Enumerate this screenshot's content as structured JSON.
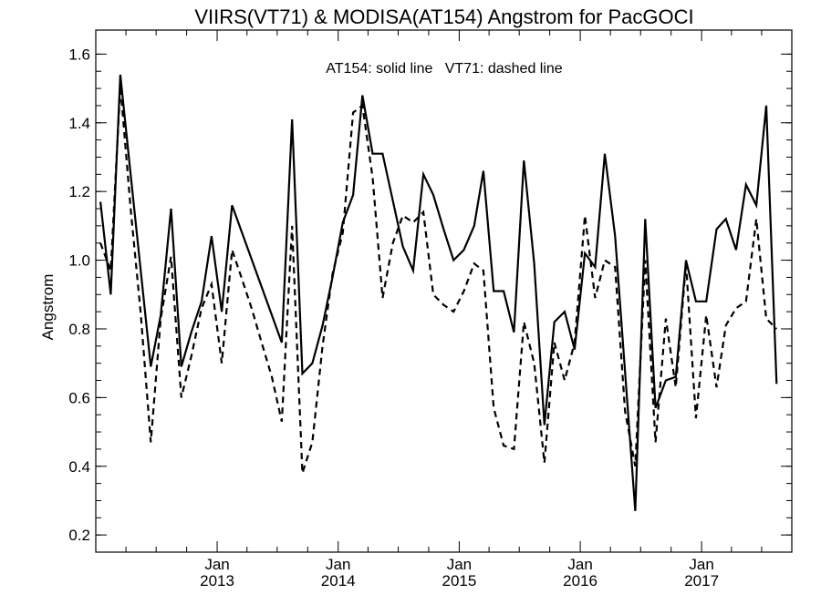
{
  "chart_data": {
    "type": "line",
    "title": "VIIRS(VT71) & MODISA(AT154)  Angstrom for PacGOCI",
    "annotation": "AT154: solid line   VT71: dashed line",
    "ylabel": "Angstrom",
    "xlabel": "",
    "ylim": [
      0.15,
      1.67
    ],
    "xlim": [
      "2012-01-01",
      "2017-09-30"
    ],
    "yticks": [
      "0.2",
      "0.4",
      "0.6",
      "0.8",
      "1.0",
      "1.2",
      "1.4",
      "1.6"
    ],
    "xticks": [
      {
        "month": "Jan",
        "year": "2013",
        "date": "2013-01-01"
      },
      {
        "month": "Jan",
        "year": "2014",
        "date": "2014-01-01"
      },
      {
        "month": "Jan",
        "year": "2015",
        "date": "2015-01-01"
      },
      {
        "month": "Jan",
        "year": "2016",
        "date": "2016-01-01"
      },
      {
        "month": "Jan",
        "year": "2017",
        "date": "2017-01-01"
      }
    ],
    "series": [
      {
        "name": "AT154",
        "style": "solid",
        "points": [
          [
            "2012-01-15",
            1.17
          ],
          [
            "2012-02-15",
            0.9
          ],
          [
            "2012-03-15",
            1.54
          ],
          [
            "2012-04-15",
            1.25
          ],
          [
            "2012-06-15",
            0.69
          ],
          [
            "2012-07-15",
            0.84
          ],
          [
            "2012-08-15",
            1.15
          ],
          [
            "2012-09-15",
            0.69
          ],
          [
            "2012-10-15",
            0.79
          ],
          [
            "2012-11-15",
            0.88
          ],
          [
            "2012-12-15",
            1.07
          ],
          [
            "2013-01-15",
            0.85
          ],
          [
            "2013-02-15",
            1.16
          ],
          [
            "2013-07-15",
            0.76
          ],
          [
            "2013-08-15",
            1.41
          ],
          [
            "2013-09-15",
            0.67
          ],
          [
            "2013-10-15",
            0.7
          ],
          [
            "2013-11-15",
            0.81
          ],
          [
            "2013-12-15",
            0.95
          ],
          [
            "2014-01-15",
            1.11
          ],
          [
            "2014-02-15",
            1.19
          ],
          [
            "2014-03-15",
            1.48
          ],
          [
            "2014-04-15",
            1.31
          ],
          [
            "2014-05-15",
            1.31
          ],
          [
            "2014-07-15",
            1.04
          ],
          [
            "2014-08-15",
            0.97
          ],
          [
            "2014-09-15",
            1.25
          ],
          [
            "2014-10-15",
            1.19
          ],
          [
            "2014-11-15",
            1.09
          ],
          [
            "2014-12-15",
            1.0
          ],
          [
            "2015-01-15",
            1.03
          ],
          [
            "2015-02-15",
            1.1
          ],
          [
            "2015-03-15",
            1.26
          ],
          [
            "2015-04-15",
            0.91
          ],
          [
            "2015-05-15",
            0.91
          ],
          [
            "2015-06-15",
            0.79
          ],
          [
            "2015-07-15",
            1.29
          ],
          [
            "2015-08-15",
            0.99
          ],
          [
            "2015-09-15",
            0.52
          ],
          [
            "2015-10-15",
            0.82
          ],
          [
            "2015-11-15",
            0.85
          ],
          [
            "2015-12-15",
            0.74
          ],
          [
            "2016-01-15",
            1.02
          ],
          [
            "2016-02-15",
            0.98
          ],
          [
            "2016-03-15",
            1.31
          ],
          [
            "2016-04-15",
            1.07
          ],
          [
            "2016-06-15",
            0.27
          ],
          [
            "2016-07-15",
            1.12
          ],
          [
            "2016-08-15",
            0.57
          ],
          [
            "2016-09-15",
            0.65
          ],
          [
            "2016-10-15",
            0.66
          ],
          [
            "2016-11-15",
            1.0
          ],
          [
            "2016-12-15",
            0.88
          ],
          [
            "2017-01-15",
            0.88
          ],
          [
            "2017-02-15",
            1.09
          ],
          [
            "2017-03-15",
            1.12
          ],
          [
            "2017-04-15",
            1.03
          ],
          [
            "2017-05-15",
            1.22
          ],
          [
            "2017-06-15",
            1.16
          ],
          [
            "2017-07-15",
            1.45
          ],
          [
            "2017-08-15",
            0.64
          ]
        ]
      },
      {
        "name": "VT71",
        "style": "dashed",
        "points": [
          [
            "2012-01-15",
            1.05
          ],
          [
            "2012-02-15",
            0.97
          ],
          [
            "2012-03-15",
            1.51
          ],
          [
            "2012-04-15",
            1.15
          ],
          [
            "2012-05-15",
            0.85
          ],
          [
            "2012-06-15",
            0.47
          ],
          [
            "2012-07-15",
            0.83
          ],
          [
            "2012-08-15",
            1.01
          ],
          [
            "2012-09-15",
            0.6
          ],
          [
            "2012-10-15",
            0.72
          ],
          [
            "2012-11-15",
            0.86
          ],
          [
            "2012-12-15",
            0.93
          ],
          [
            "2013-01-15",
            0.7
          ],
          [
            "2013-02-15",
            1.03
          ],
          [
            "2013-03-15",
            0.95
          ],
          [
            "2013-04-15",
            0.86
          ],
          [
            "2013-05-15",
            0.76
          ],
          [
            "2013-06-15",
            0.66
          ],
          [
            "2013-07-15",
            0.53
          ],
          [
            "2013-08-15",
            1.1
          ],
          [
            "2013-09-15",
            0.38
          ],
          [
            "2013-10-15",
            0.47
          ],
          [
            "2013-11-15",
            0.75
          ],
          [
            "2013-12-15",
            0.96
          ],
          [
            "2014-01-15",
            1.08
          ],
          [
            "2014-02-15",
            1.43
          ],
          [
            "2014-03-15",
            1.45
          ],
          [
            "2014-04-15",
            1.24
          ],
          [
            "2014-05-15",
            0.89
          ],
          [
            "2014-06-15",
            1.05
          ],
          [
            "2014-07-15",
            1.13
          ],
          [
            "2014-08-15",
            1.11
          ],
          [
            "2014-09-15",
            1.14
          ],
          [
            "2014-10-15",
            0.9
          ],
          [
            "2014-11-15",
            0.87
          ],
          [
            "2014-12-15",
            0.85
          ],
          [
            "2015-01-15",
            0.91
          ],
          [
            "2015-02-15",
            0.99
          ],
          [
            "2015-03-15",
            0.97
          ],
          [
            "2015-04-15",
            0.57
          ],
          [
            "2015-05-15",
            0.46
          ],
          [
            "2015-06-15",
            0.45
          ],
          [
            "2015-07-15",
            0.82
          ],
          [
            "2015-08-15",
            0.7
          ],
          [
            "2015-09-15",
            0.41
          ],
          [
            "2015-10-15",
            0.76
          ],
          [
            "2015-11-15",
            0.65
          ],
          [
            "2015-12-15",
            0.76
          ],
          [
            "2016-01-15",
            1.13
          ],
          [
            "2016-02-15",
            0.89
          ],
          [
            "2016-03-15",
            1.0
          ],
          [
            "2016-04-15",
            0.98
          ],
          [
            "2016-05-15",
            0.56
          ],
          [
            "2016-06-15",
            0.4
          ],
          [
            "2016-07-15",
            1.0
          ],
          [
            "2016-08-15",
            0.47
          ],
          [
            "2016-09-15",
            0.83
          ],
          [
            "2016-10-15",
            0.63
          ],
          [
            "2016-11-15",
            0.99
          ],
          [
            "2016-12-15",
            0.54
          ],
          [
            "2017-01-15",
            0.84
          ],
          [
            "2017-02-15",
            0.63
          ],
          [
            "2017-03-15",
            0.81
          ],
          [
            "2017-04-15",
            0.86
          ],
          [
            "2017-05-15",
            0.88
          ],
          [
            "2017-06-15",
            1.12
          ],
          [
            "2017-07-15",
            0.83
          ],
          [
            "2017-08-15",
            0.8
          ]
        ]
      }
    ]
  }
}
